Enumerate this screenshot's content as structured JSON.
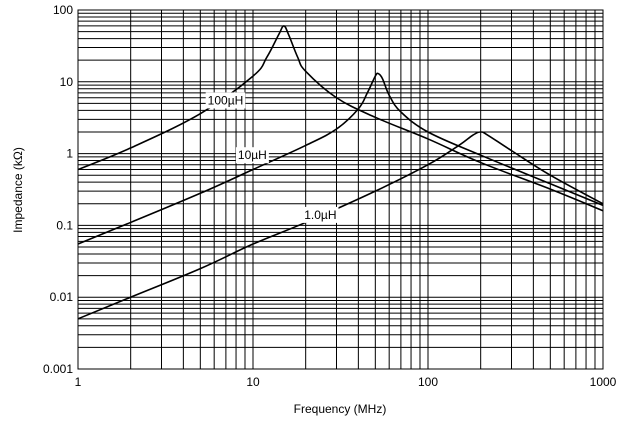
{
  "chart_data": {
    "type": "line",
    "xlabel": "Frequency (MHz)",
    "ylabel": "Impedance (kΩ)",
    "x_scale": "log",
    "y_scale": "log",
    "xlim": [
      1,
      1000
    ],
    "ylim": [
      0.001,
      100
    ],
    "grid": true,
    "x_ticks": [
      "1",
      "10",
      "100",
      "1000"
    ],
    "y_ticks": [
      "0.001",
      "0.01",
      "0.1",
      "1",
      "10",
      "100"
    ],
    "series": [
      {
        "name": "100µH",
        "x": [
          1,
          2,
          5,
          10,
          12,
          14,
          15,
          16,
          18,
          20,
          30,
          50,
          100,
          200,
          500,
          1000
        ],
        "y": [
          0.6,
          1.2,
          3.6,
          12,
          22,
          45,
          60,
          45,
          22,
          14,
          6,
          3.2,
          1.6,
          0.75,
          0.32,
          0.16
        ]
      },
      {
        "name": "10µH",
        "x": [
          1,
          2,
          5,
          10,
          20,
          30,
          40,
          45,
          50,
          52,
          55,
          60,
          70,
          100,
          200,
          500,
          1000
        ],
        "y": [
          0.055,
          0.11,
          0.28,
          0.6,
          1.3,
          2.2,
          4.2,
          7,
          12,
          13,
          11,
          6.5,
          3.8,
          2,
          0.95,
          0.38,
          0.19
        ]
      },
      {
        "name": "1.0µH",
        "x": [
          1,
          2,
          5,
          10,
          20,
          50,
          100,
          150,
          180,
          200,
          220,
          300,
          500,
          1000
        ],
        "y": [
          0.005,
          0.01,
          0.025,
          0.055,
          0.11,
          0.3,
          0.7,
          1.3,
          1.8,
          2,
          1.8,
          1.1,
          0.5,
          0.2
        ]
      }
    ]
  }
}
